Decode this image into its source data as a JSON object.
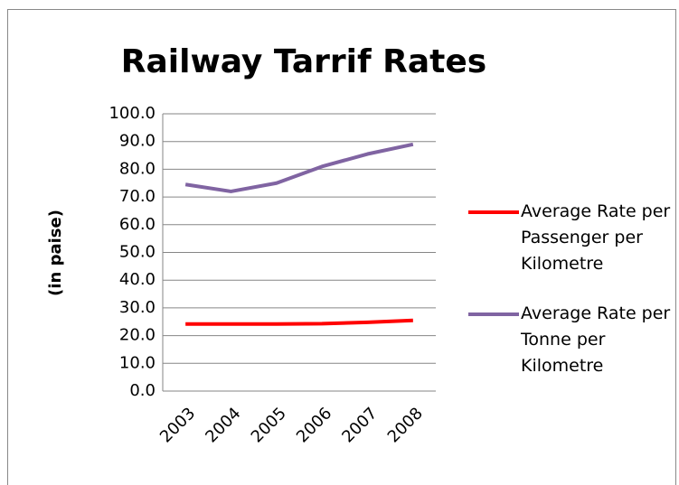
{
  "chart_data": {
    "type": "line",
    "title": "Railway Tarrif Rates",
    "y_label": "(in paise)",
    "categories": [
      "2003",
      "2004",
      "2005",
      "2006",
      "2007",
      "2008"
    ],
    "series": [
      {
        "name": "Average Rate per Passenger per Kilometre",
        "color": "#ff0000",
        "values": [
          24.2,
          24.2,
          24.2,
          24.3,
          24.8,
          25.5
        ]
      },
      {
        "name": "Average Rate per Tonne per Kilometre",
        "color": "#8064a2",
        "values": [
          74.5,
          72.0,
          75.0,
          81.0,
          85.5,
          89.0
        ]
      }
    ],
    "ylim": [
      0,
      100
    ],
    "yticks": [
      {
        "value": 0,
        "label": "0.0"
      },
      {
        "value": 10,
        "label": "10.0"
      },
      {
        "value": 20,
        "label": "20.0"
      },
      {
        "value": 30,
        "label": "30.0"
      },
      {
        "value": 40,
        "label": "40.0"
      },
      {
        "value": 50,
        "label": "50.0"
      },
      {
        "value": 60,
        "label": "60.0"
      },
      {
        "value": 70,
        "label": "70.0"
      },
      {
        "value": 80,
        "label": "80.0"
      },
      {
        "value": 90,
        "label": "90.0"
      },
      {
        "value": 100,
        "label": "100.0"
      }
    ],
    "grid": true,
    "legend": "right"
  }
}
